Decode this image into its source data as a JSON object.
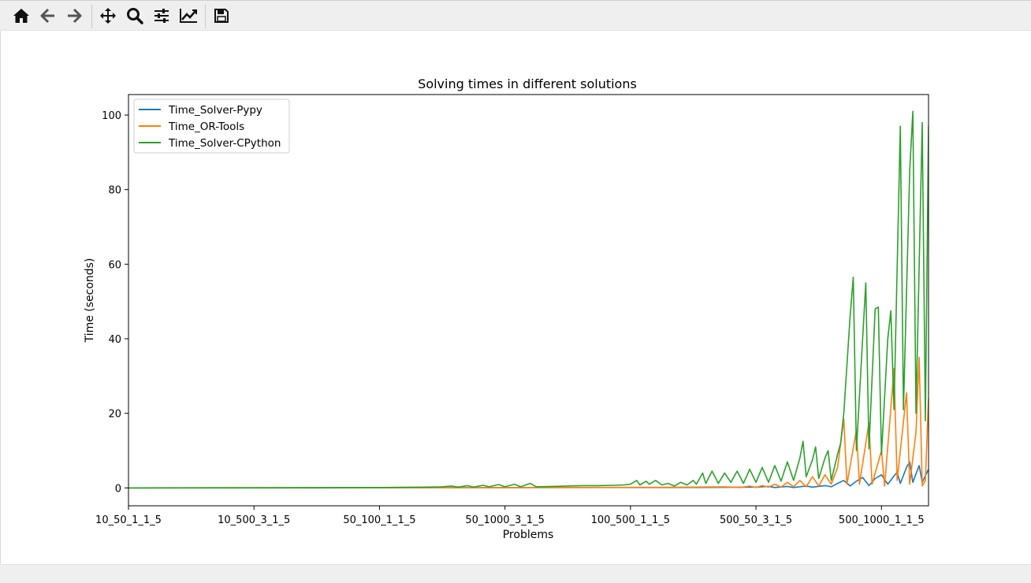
{
  "toolbar": {
    "buttons": [
      {
        "name": "home-button",
        "icon": "home-icon"
      },
      {
        "name": "back-button",
        "icon": "arrow-left-icon"
      },
      {
        "name": "forward-button",
        "icon": "arrow-right-icon"
      },
      {
        "name": "pan-button",
        "icon": "move-icon"
      },
      {
        "name": "zoom-button",
        "icon": "magnifier-icon"
      },
      {
        "name": "subplots-button",
        "icon": "sliders-icon"
      },
      {
        "name": "edit-axes-button",
        "icon": "line-chart-icon"
      },
      {
        "name": "save-button",
        "icon": "floppy-disk-icon"
      }
    ]
  },
  "chart_data": {
    "type": "line",
    "title": "Solving times in different solutions",
    "xlabel": "Problems",
    "ylabel": "Time (seconds)",
    "ylim": [
      -4.8,
      105.5
    ],
    "xlim": [
      0,
      255
    ],
    "yticks": [
      0,
      20,
      40,
      60,
      80,
      100
    ],
    "xticks": [
      {
        "pos": 0,
        "label": "10_50_1_1_5"
      },
      {
        "pos": 40,
        "label": "10_500_3_1_5"
      },
      {
        "pos": 80,
        "label": "50_100_1_1_5"
      },
      {
        "pos": 120,
        "label": "50_1000_3_1_5"
      },
      {
        "pos": 160,
        "label": "100_500_1_1_5"
      },
      {
        "pos": 200,
        "label": "500_50_3_1_5"
      },
      {
        "pos": 240,
        "label": "500_1000_1_1_5"
      }
    ],
    "legend_position": "top-left",
    "grid": false,
    "series": [
      {
        "name": "Time_Solver-Pypy",
        "color": "#1f77b4",
        "points": [
          [
            0,
            0
          ],
          [
            60,
            0
          ],
          [
            100,
            0.05
          ],
          [
            140,
            0.1
          ],
          [
            170,
            0.1
          ],
          [
            190,
            0.15
          ],
          [
            200,
            0.2
          ],
          [
            204,
            0.4
          ],
          [
            206,
            0.1
          ],
          [
            210,
            0.4
          ],
          [
            212,
            0.1
          ],
          [
            216,
            0.5
          ],
          [
            218,
            0.2
          ],
          [
            222,
            0.6
          ],
          [
            224,
            0.3
          ],
          [
            226,
            1.2
          ],
          [
            228,
            2.0
          ],
          [
            230,
            0.5
          ],
          [
            232,
            1.8
          ],
          [
            234,
            2.8
          ],
          [
            236,
            0.6
          ],
          [
            238,
            2.5
          ],
          [
            240,
            3.5
          ],
          [
            242,
            1.0
          ],
          [
            244,
            3.2
          ],
          [
            245,
            4.2
          ],
          [
            246,
            1.2
          ],
          [
            248,
            5.5
          ],
          [
            249,
            7.0
          ],
          [
            250,
            1.5
          ],
          [
            252,
            6.0
          ],
          [
            253,
            1.5
          ],
          [
            255,
            5.0
          ]
        ]
      },
      {
        "name": "Time_OR-Tools",
        "color": "#ff7f0e",
        "points": [
          [
            0,
            0
          ],
          [
            100,
            0.05
          ],
          [
            140,
            0.1
          ],
          [
            170,
            0.15
          ],
          [
            180,
            0.2
          ],
          [
            190,
            0.3
          ],
          [
            195,
            0.1
          ],
          [
            198,
            0.5
          ],
          [
            200,
            0.1
          ],
          [
            202,
            0.6
          ],
          [
            204,
            0.2
          ],
          [
            206,
            1.0
          ],
          [
            208,
            0.2
          ],
          [
            210,
            1.5
          ],
          [
            212,
            0.3
          ],
          [
            214,
            2.0
          ],
          [
            216,
            0.3
          ],
          [
            218,
            3.0
          ],
          [
            220,
            0.5
          ],
          [
            222,
            3.5
          ],
          [
            224,
            1.0
          ],
          [
            226,
            5.5
          ],
          [
            228,
            18.5
          ],
          [
            229,
            1.0
          ],
          [
            232,
            15.5
          ],
          [
            233,
            1.0
          ],
          [
            236,
            17.5
          ],
          [
            237,
            1.0
          ],
          [
            240,
            10.0
          ],
          [
            241,
            0.5
          ],
          [
            244,
            32.0
          ],
          [
            245,
            2.0
          ],
          [
            248,
            25.5
          ],
          [
            249,
            1.0
          ],
          [
            251,
            15.0
          ],
          [
            252,
            35.0
          ],
          [
            253,
            0.5
          ],
          [
            254,
            2.0
          ],
          [
            255,
            24.0
          ]
        ]
      },
      {
        "name": "Time_Solver-CPython",
        "color": "#2ca02c",
        "points": [
          [
            0,
            0
          ],
          [
            80,
            0.1
          ],
          [
            95,
            0.2
          ],
          [
            100,
            0.3
          ],
          [
            103,
            0.5
          ],
          [
            105,
            0.2
          ],
          [
            108,
            0.6
          ],
          [
            110,
            0.2
          ],
          [
            113,
            0.7
          ],
          [
            115,
            0.3
          ],
          [
            118,
            0.9
          ],
          [
            120,
            0.3
          ],
          [
            123,
            1.0
          ],
          [
            125,
            0.3
          ],
          [
            128,
            1.2
          ],
          [
            130,
            0.3
          ],
          [
            135,
            0.4
          ],
          [
            140,
            0.5
          ],
          [
            145,
            0.6
          ],
          [
            150,
            0.6
          ],
          [
            155,
            0.7
          ],
          [
            158,
            0.8
          ],
          [
            160,
            1.0
          ],
          [
            162,
            2.0
          ],
          [
            163,
            0.8
          ],
          [
            165,
            1.8
          ],
          [
            166,
            1.0
          ],
          [
            168,
            2.0
          ],
          [
            170,
            0.8
          ],
          [
            172,
            1.2
          ],
          [
            174,
            0.5
          ],
          [
            176,
            1.5
          ],
          [
            178,
            0.8
          ],
          [
            180,
            2.0
          ],
          [
            181,
            1.0
          ],
          [
            183,
            4.0
          ],
          [
            184,
            1.2
          ],
          [
            186,
            4.5
          ],
          [
            188,
            1.2
          ],
          [
            190,
            4.0
          ],
          [
            192,
            1.5
          ],
          [
            194,
            4.5
          ],
          [
            196,
            1.2
          ],
          [
            198,
            5.0
          ],
          [
            200,
            1.5
          ],
          [
            202,
            5.5
          ],
          [
            204,
            1.5
          ],
          [
            206,
            6.0
          ],
          [
            208,
            1.8
          ],
          [
            210,
            7.0
          ],
          [
            212,
            2.0
          ],
          [
            214,
            8.0
          ],
          [
            215,
            12.5
          ],
          [
            216,
            3.0
          ],
          [
            218,
            7.5
          ],
          [
            219,
            11.0
          ],
          [
            220,
            2.5
          ],
          [
            222,
            8.0
          ],
          [
            223,
            10.0
          ],
          [
            224,
            2.0
          ],
          [
            226,
            9.0
          ],
          [
            227,
            12.0
          ],
          [
            228,
            20.0
          ],
          [
            230,
            46.0
          ],
          [
            231,
            56.5
          ],
          [
            232,
            10.0
          ],
          [
            234,
            40.0
          ],
          [
            235,
            55.0
          ],
          [
            236,
            10.5
          ],
          [
            238,
            48.0
          ],
          [
            239,
            48.5
          ],
          [
            240,
            9.0
          ],
          [
            242,
            40.0
          ],
          [
            243,
            47.5
          ],
          [
            244,
            21.0
          ],
          [
            246,
            97.0
          ],
          [
            247,
            21.0
          ],
          [
            249,
            85.0
          ],
          [
            250,
            101.0
          ],
          [
            251,
            20.0
          ],
          [
            253,
            98.0
          ],
          [
            254,
            18.0
          ],
          [
            255,
            97.0
          ]
        ]
      }
    ]
  }
}
